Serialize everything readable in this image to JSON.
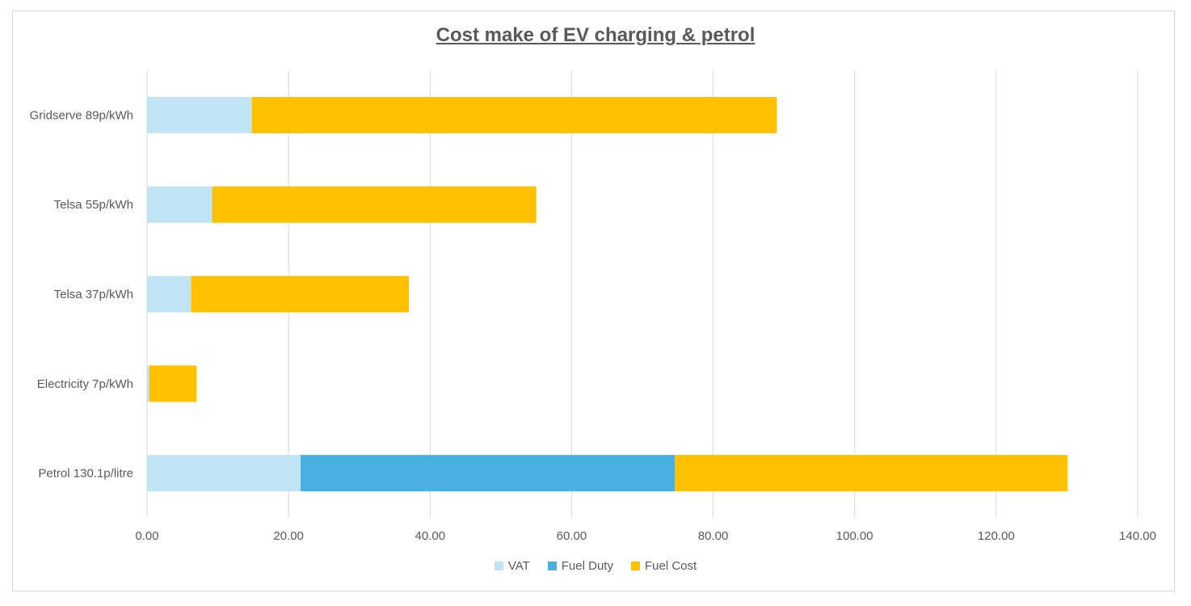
{
  "chart_data": {
    "type": "bar",
    "orientation": "horizontal",
    "stacked": true,
    "title": "Cost make of EV charging & petrol",
    "categories": [
      "Gridserve 89p/kWh",
      "Telsa 55p/kWh",
      "Telsa 37p/kWh",
      "Electricity 7p/kWh",
      "Petrol 130.1p/litre"
    ],
    "series": [
      {
        "name": "VAT",
        "color": "#c1e4f5",
        "values": [
          14.8,
          9.2,
          6.2,
          0.3,
          21.7
        ]
      },
      {
        "name": "Fuel Duty",
        "color": "#47b0e0",
        "values": [
          0,
          0,
          0,
          0,
          52.9
        ]
      },
      {
        "name": "Fuel Cost",
        "color": "#ffc000",
        "values": [
          74.2,
          45.8,
          30.8,
          6.7,
          55.5
        ]
      }
    ],
    "xlim": [
      0,
      140
    ],
    "x_ticks": [
      "0.00",
      "20.00",
      "40.00",
      "60.00",
      "80.00",
      "100.00",
      "120.00",
      "140.00"
    ],
    "grid": "vertical",
    "legend_position": "bottom"
  }
}
